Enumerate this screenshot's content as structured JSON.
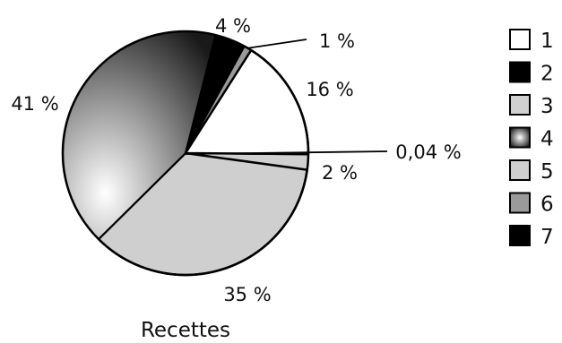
{
  "chart_data": {
    "type": "pie",
    "title": "Recettes",
    "slices": [
      {
        "legend": "1",
        "value": 16,
        "label": "16 %",
        "color": "#ffffff"
      },
      {
        "legend": "2",
        "value": 0.04,
        "label": "0,04 %",
        "color": "#000000"
      },
      {
        "legend": "3",
        "value": 2,
        "label": "2 %",
        "color": "#d0d0d0"
      },
      {
        "legend": "4",
        "value": 41,
        "label": "41 %",
        "color": "radial-grey-gradient"
      },
      {
        "legend": "5",
        "value": 35,
        "label": "35 %",
        "color": "#cfcfcf"
      },
      {
        "legend": "6",
        "value": 1,
        "label": "1 %",
        "color": "#9a9a9a"
      },
      {
        "legend": "7",
        "value": 4,
        "label": "4 %",
        "color": "#000000"
      }
    ],
    "legend_position": "right"
  }
}
